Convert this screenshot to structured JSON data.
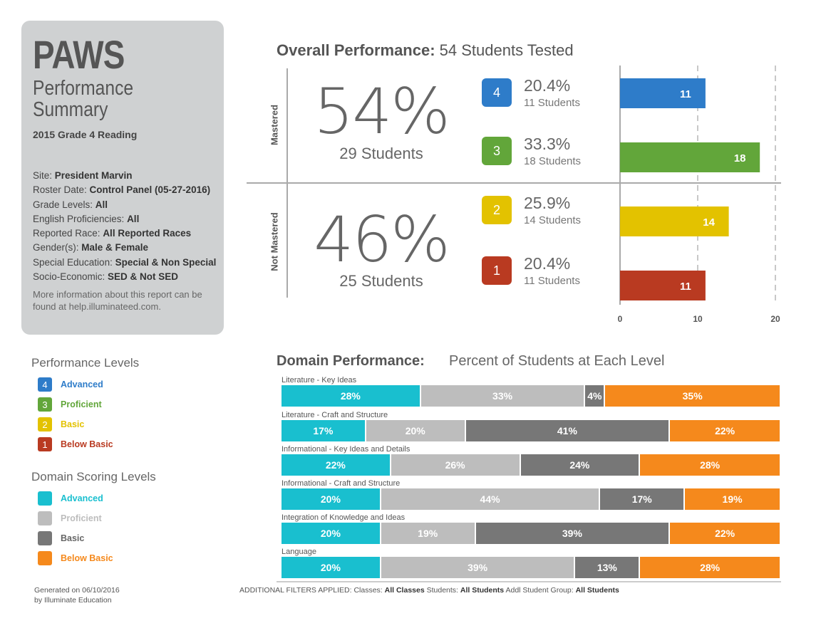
{
  "report": {
    "app_title": "PAWS",
    "subtitle": "Performance Summary",
    "report_name": "2015 Grade 4 Reading",
    "filters": [
      {
        "label": "Site: ",
        "value": "President Marvin"
      },
      {
        "label": "Roster Date: ",
        "value": "Control Panel (05-27-2016)"
      },
      {
        "label": "Grade Levels: ",
        "value": "All"
      },
      {
        "label": "English Proficiencies: ",
        "value": "All"
      },
      {
        "label": "Reported Race: ",
        "value": "All Reported Races"
      },
      {
        "label": "Gender(s): ",
        "value": "Male & Female"
      },
      {
        "label": "Special Education: ",
        "value": "Special & Non Special"
      },
      {
        "label": "Socio-Economic: ",
        "value": "SED & Not SED"
      }
    ],
    "info": "More information about this report can be found at help.illuminateed.com."
  },
  "performance_levels": {
    "title": "Performance Levels",
    "items": [
      {
        "num": "4",
        "label": "Advanced",
        "color": "#2e7cc9"
      },
      {
        "num": "3",
        "label": "Proficient",
        "color": "#62a63a"
      },
      {
        "num": "2",
        "label": "Basic",
        "color": "#e3c200"
      },
      {
        "num": "1",
        "label": "Below Basic",
        "color": "#b93a21"
      }
    ]
  },
  "domain_levels": {
    "title": "Domain Scoring Levels",
    "items": [
      {
        "label": "Advanced",
        "color": "#19bfcf",
        "text_color": "#19bfcf"
      },
      {
        "label": "Proficient",
        "color": "#bdbdbd",
        "text_color": "#bdbdbd"
      },
      {
        "label": "Basic",
        "color": "#777777",
        "text_color": "#666666"
      },
      {
        "label": "Below Basic",
        "color": "#f5891c",
        "text_color": "#f5891c"
      }
    ]
  },
  "footer": {
    "generated_line1": "Generated on 06/10/2016",
    "generated_line2": "by Illuminate Education",
    "filters_prefix": "ADDITIONAL FILTERS APPLIED:  Classes: ",
    "classes": "All Classes",
    "students_label": "  Students: ",
    "students": "All Students",
    "group_label": "  Addl Student Group: ",
    "group": "All Students"
  },
  "overall": {
    "title_bold": "Overall Performance:",
    "title_rest": " 54 Students Tested",
    "mastered_label": "Mastered",
    "not_mastered_label": "Not Mastered",
    "mastered_pct": "54%",
    "mastered_students": "29 Students",
    "not_mastered_pct": "46%",
    "not_mastered_students": "25 Students",
    "levels": [
      {
        "num": "4",
        "pct": "20.4%",
        "students": "11 Students",
        "color": "#2e7cc9"
      },
      {
        "num": "3",
        "pct": "33.3%",
        "students": "18 Students",
        "color": "#62a63a"
      },
      {
        "num": "2",
        "pct": "25.9%",
        "students": "14 Students",
        "color": "#e3c200"
      },
      {
        "num": "1",
        "pct": "20.4%",
        "students": "11 Students",
        "color": "#b93a21"
      }
    ]
  },
  "chart_data": [
    {
      "type": "bar",
      "orientation": "horizontal",
      "categories": [
        "4",
        "3",
        "2",
        "1"
      ],
      "values": [
        11,
        18,
        14,
        11
      ],
      "colors": [
        "#2e7cc9",
        "#62a63a",
        "#e3c200",
        "#b93a21"
      ],
      "xlim": [
        0,
        20
      ],
      "xticks": [
        "0",
        "10",
        "20"
      ],
      "grid": "dashed vertical at 10 and 20"
    },
    {
      "type": "bar",
      "orientation": "horizontal",
      "stacked": true,
      "title": "Domain Performance:",
      "subtitle": "Percent of Students at Each Level",
      "levels": [
        "Advanced",
        "Proficient",
        "Basic",
        "Below Basic"
      ],
      "colors": [
        "#19bfcf",
        "#bdbdbd",
        "#777777",
        "#f5891c"
      ],
      "rows": [
        {
          "name": "Literature - Key Ideas",
          "values": [
            28,
            33,
            4,
            35
          ]
        },
        {
          "name": "Literature - Craft and Structure",
          "values": [
            17,
            20,
            41,
            22
          ]
        },
        {
          "name": "Informational - Key Ideas and Details",
          "values": [
            22,
            26,
            24,
            28
          ]
        },
        {
          "name": "Informational - Craft and Structure",
          "values": [
            20,
            44,
            17,
            19
          ]
        },
        {
          "name": "Integration of Knowledge and Ideas",
          "values": [
            20,
            19,
            39,
            22
          ]
        },
        {
          "name": "Language",
          "values": [
            20,
            39,
            13,
            28
          ]
        }
      ]
    }
  ]
}
